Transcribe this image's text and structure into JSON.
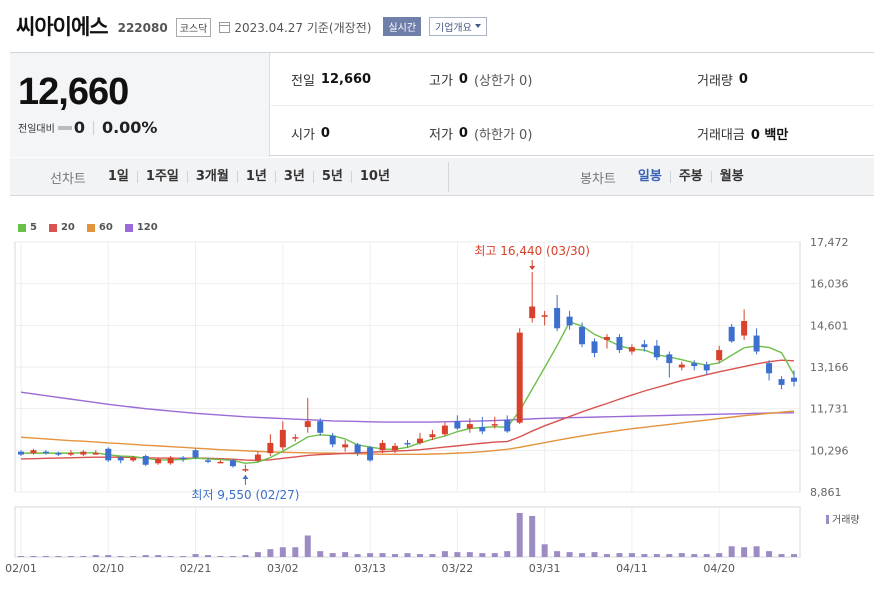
{
  "header": {
    "name": "씨아이에스",
    "code": "222080",
    "market": "코스닥",
    "date_text": "2023.04.27 기준(개장전)",
    "realtime_label": "실시간",
    "company_label": "기업개요"
  },
  "quote": {
    "price": "12,660",
    "change_label": "전일대비",
    "change_value": "0",
    "change_pct": "0.00%"
  },
  "stats": {
    "prev_label": "전일",
    "prev_value": "12,660",
    "high_label": "고가",
    "high_value": "0",
    "high_sub": "(상한가 0)",
    "volume_label": "거래량",
    "volume_value": "0",
    "open_label": "시가",
    "open_value": "0",
    "low_label": "저가",
    "low_value": "0",
    "low_sub": "(하한가 0)",
    "amount_label": "거래대금",
    "amount_value": "0 백만"
  },
  "periods": {
    "line_label": "선차트",
    "line_items": [
      "1일",
      "1주일",
      "3개월",
      "1년",
      "3년",
      "5년",
      "10년"
    ],
    "candle_label": "봉차트",
    "candle_items": [
      "일봉",
      "주봉",
      "월봉"
    ],
    "candle_active": "일봉"
  },
  "chart_data": {
    "type": "candlestick",
    "legend": [
      {
        "name": "5",
        "color": "#6cbf4a"
      },
      {
        "name": "20",
        "color": "#d9534f"
      },
      {
        "name": "60",
        "color": "#e3933c"
      },
      {
        "name": "120",
        "color": "#9a6bd6"
      }
    ],
    "y_ticks": [
      "17,472",
      "16,036",
      "14,601",
      "13,166",
      "11,731",
      "10,296",
      "8,861"
    ],
    "ylim": [
      8861,
      17472
    ],
    "x_ticks": [
      "02/01",
      "02/10",
      "02/21",
      "03/02",
      "03/13",
      "03/22",
      "03/31",
      "04/11",
      "04/20"
    ],
    "x_tick_index": [
      0,
      7,
      14,
      21,
      28,
      35,
      42,
      49,
      56
    ],
    "max_annotation": "최고 16,440 (03/30)",
    "max_index": 41,
    "max_value": 16440,
    "min_annotation": "최저 9,550 (02/27)",
    "min_index": 18,
    "min_value": 9550,
    "volume_label": "거래량",
    "colors": {
      "up": "#d9412c",
      "down": "#3d6fcf",
      "volume": "#9d8cc4"
    },
    "candles": [
      [
        10250,
        10150,
        10300,
        10100
      ],
      [
        10200,
        10300,
        10350,
        10150
      ],
      [
        10250,
        10200,
        10300,
        10150
      ],
      [
        10200,
        10150,
        10250,
        10100
      ],
      [
        10150,
        10200,
        10300,
        10100
      ],
      [
        10150,
        10250,
        10300,
        10100
      ],
      [
        10200,
        10200,
        10300,
        10150
      ],
      [
        10350,
        9950,
        10400,
        9900
      ],
      [
        10050,
        9950,
        10100,
        9850
      ],
      [
        9950,
        10050,
        10100,
        9900
      ],
      [
        10100,
        9800,
        10150,
        9750
      ],
      [
        9850,
        10000,
        10050,
        9800
      ],
      [
        9850,
        10050,
        10100,
        9800
      ],
      [
        10050,
        10000,
        10100,
        9900
      ],
      [
        10300,
        10050,
        10350,
        10000
      ],
      [
        9950,
        9900,
        10050,
        9850
      ],
      [
        9900,
        9900,
        9950,
        9850
      ],
      [
        9950,
        9750,
        10000,
        9700
      ],
      [
        9650,
        9650,
        9800,
        9550
      ],
      [
        9950,
        10150,
        10250,
        9900
      ],
      [
        10200,
        10550,
        10850,
        10100
      ],
      [
        10400,
        11000,
        11300,
        10300
      ],
      [
        10700,
        10750,
        10850,
        10600
      ],
      [
        11100,
        11300,
        12100,
        10900
      ],
      [
        11300,
        10900,
        11400,
        10800
      ],
      [
        10800,
        10500,
        10900,
        10400
      ],
      [
        10400,
        10500,
        10650,
        10250
      ],
      [
        10500,
        10200,
        10550,
        10100
      ],
      [
        10400,
        9950,
        10450,
        9900
      ],
      [
        10300,
        10550,
        10650,
        10200
      ],
      [
        10300,
        10450,
        10550,
        10200
      ],
      [
        10550,
        10500,
        10650,
        10400
      ],
      [
        10550,
        10700,
        10900,
        10500
      ],
      [
        10750,
        10850,
        11000,
        10650
      ],
      [
        10850,
        11150,
        11250,
        10800
      ],
      [
        11300,
        11050,
        11500,
        11000
      ],
      [
        11050,
        11200,
        11400,
        10900
      ],
      [
        11100,
        10950,
        11450,
        10850
      ],
      [
        11150,
        11200,
        11450,
        11050
      ],
      [
        11350,
        10950,
        11500,
        10900
      ],
      [
        11250,
        14350,
        14500,
        11200
      ],
      [
        14850,
        15250,
        16440,
        14700
      ],
      [
        14900,
        14950,
        15100,
        14600
      ],
      [
        15200,
        14500,
        15650,
        14400
      ],
      [
        14900,
        14600,
        15100,
        14450
      ],
      [
        14550,
        13950,
        14700,
        13850
      ],
      [
        14050,
        13650,
        14150,
        13500
      ],
      [
        14100,
        14200,
        14300,
        13800
      ],
      [
        14200,
        13750,
        14300,
        13650
      ],
      [
        13700,
        13850,
        13950,
        13600
      ],
      [
        13950,
        13850,
        14100,
        13700
      ],
      [
        13900,
        13500,
        14100,
        13400
      ],
      [
        13600,
        13300,
        13700,
        12800
      ],
      [
        13150,
        13250,
        13350,
        13050
      ],
      [
        13300,
        13200,
        13400,
        13050
      ],
      [
        13250,
        13050,
        13350,
        12900
      ],
      [
        13400,
        13750,
        13900,
        13300
      ],
      [
        14550,
        14050,
        14650,
        14000
      ],
      [
        14250,
        14750,
        15150,
        14100
      ],
      [
        14250,
        13700,
        14500,
        13600
      ],
      [
        13300,
        12950,
        13400,
        12700
      ],
      [
        12750,
        12550,
        12850,
        12400
      ],
      [
        12800,
        12660,
        13050,
        12500
      ]
    ],
    "ma5": [
      10200,
      10200,
      10200,
      10200,
      10200,
      10210,
      10210,
      10140,
      10100,
      10080,
      10020,
      9960,
      9970,
      9980,
      10030,
      10000,
      9980,
      9950,
      9850,
      9890,
      10050,
      10270,
      10500,
      10760,
      10830,
      10800,
      10690,
      10480,
      10410,
      10340,
      10330,
      10400,
      10550,
      10680,
      10790,
      10940,
      11050,
      11080,
      11110,
      11090,
      11660,
      12400,
      13150,
      13900,
      14720,
      14580,
      14290,
      14100,
      13900,
      13780,
      13750,
      13590,
      13510,
      13420,
      13310,
      13230,
      13310,
      13570,
      13830,
      13890,
      13840,
      13660,
      12900
    ],
    "ma20": [
      10000,
      10010,
      10020,
      10030,
      10040,
      10050,
      10060,
      10060,
      10060,
      10050,
      10040,
      10030,
      10030,
      10020,
      10030,
      10020,
      10010,
      9990,
      9960,
      9950,
      9970,
      10020,
      10070,
      10120,
      10150,
      10170,
      10190,
      10210,
      10230,
      10250,
      10270,
      10290,
      10320,
      10360,
      10410,
      10450,
      10500,
      10540,
      10580,
      10600,
      10760,
      10960,
      11140,
      11300,
      11460,
      11620,
      11770,
      11910,
      12060,
      12200,
      12340,
      12460,
      12580,
      12700,
      12800,
      12900,
      13000,
      13090,
      13180,
      13270,
      13350,
      13400,
      13380
    ],
    "ma60": [
      10750,
      10720,
      10690,
      10660,
      10630,
      10610,
      10580,
      10550,
      10530,
      10500,
      10470,
      10450,
      10420,
      10400,
      10370,
      10350,
      10320,
      10300,
      10280,
      10260,
      10240,
      10230,
      10220,
      10210,
      10200,
      10200,
      10190,
      10180,
      10170,
      10160,
      10160,
      10160,
      10160,
      10170,
      10180,
      10200,
      10220,
      10250,
      10290,
      10330,
      10400,
      10480,
      10560,
      10640,
      10720,
      10790,
      10860,
      10920,
      10980,
      11040,
      11090,
      11140,
      11190,
      11240,
      11290,
      11340,
      11390,
      11440,
      11490,
      11530,
      11570,
      11610,
      11650
    ],
    "ma120": [
      12300,
      12240,
      12180,
      12120,
      12060,
      12000,
      11940,
      11880,
      11830,
      11780,
      11730,
      11690,
      11650,
      11610,
      11570,
      11540,
      11510,
      11480,
      11450,
      11430,
      11410,
      11390,
      11370,
      11350,
      11330,
      11310,
      11300,
      11290,
      11280,
      11270,
      11270,
      11270,
      11270,
      11270,
      11280,
      11290,
      11300,
      11310,
      11320,
      11340,
      11360,
      11380,
      11400,
      11410,
      11420,
      11430,
      11440,
      11450,
      11460,
      11470,
      11480,
      11490,
      11500,
      11510,
      11520,
      11530,
      11540,
      11550,
      11560,
      11570,
      11580,
      11590,
      11590
    ],
    "volume": [
      1,
      1,
      1,
      1,
      1,
      1,
      2,
      2,
      1,
      1,
      2,
      2,
      1,
      1,
      3,
      2,
      1,
      1,
      2,
      5,
      8,
      10,
      10,
      22,
      6,
      4,
      5,
      3,
      4,
      4,
      3,
      4,
      3,
      3,
      6,
      5,
      5,
      4,
      4,
      6,
      45,
      42,
      13,
      6,
      5,
      4,
      5,
      3,
      4,
      4,
      3,
      3,
      3,
      4,
      3,
      3,
      4,
      11,
      10,
      11,
      6,
      3,
      3
    ]
  }
}
